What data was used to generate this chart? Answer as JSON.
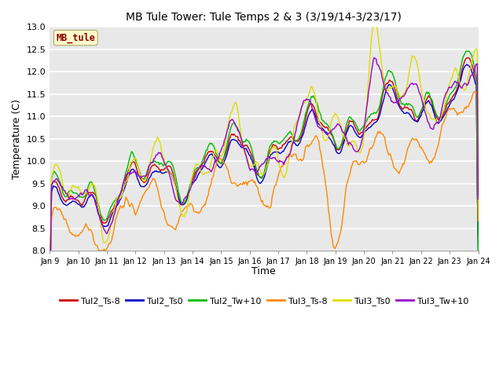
{
  "title": "MB Tule Tower: Tule Temps 2 & 3 (3/19/14-3/23/17)",
  "xlabel": "Time",
  "ylabel": "Temperature (C)",
  "ylim": [
    8.0,
    13.0
  ],
  "bg_color": "#e8e8e8",
  "series_colors": {
    "Tul2_Ts-8": "#cc0000",
    "Tul2_Ts0": "#0000cc",
    "Tul2_Tw+10": "#00bb00",
    "Tul3_Ts-8": "#ff8800",
    "Tul3_Ts0": "#dddd00",
    "Tul3_Tw+10": "#9900cc"
  },
  "xtick_labels": [
    "Jan 9",
    "Jan 10",
    "Jan 11",
    "Jan 12",
    "Jan 13",
    "Jan 14",
    "Jan 15",
    "Jan 16",
    "Jan 17",
    "Jan 18",
    "Jan 19",
    "Jan 20",
    "Jan 21",
    "Jan 22",
    "Jan 23",
    "Jan 24"
  ],
  "ytick_vals": [
    8.0,
    8.5,
    9.0,
    9.5,
    10.0,
    10.5,
    11.0,
    11.5,
    12.0,
    12.5,
    13.0
  ],
  "annotation_text": "MB_tule",
  "annotation_color": "#8b0000",
  "annotation_bg": "#ffffcc"
}
